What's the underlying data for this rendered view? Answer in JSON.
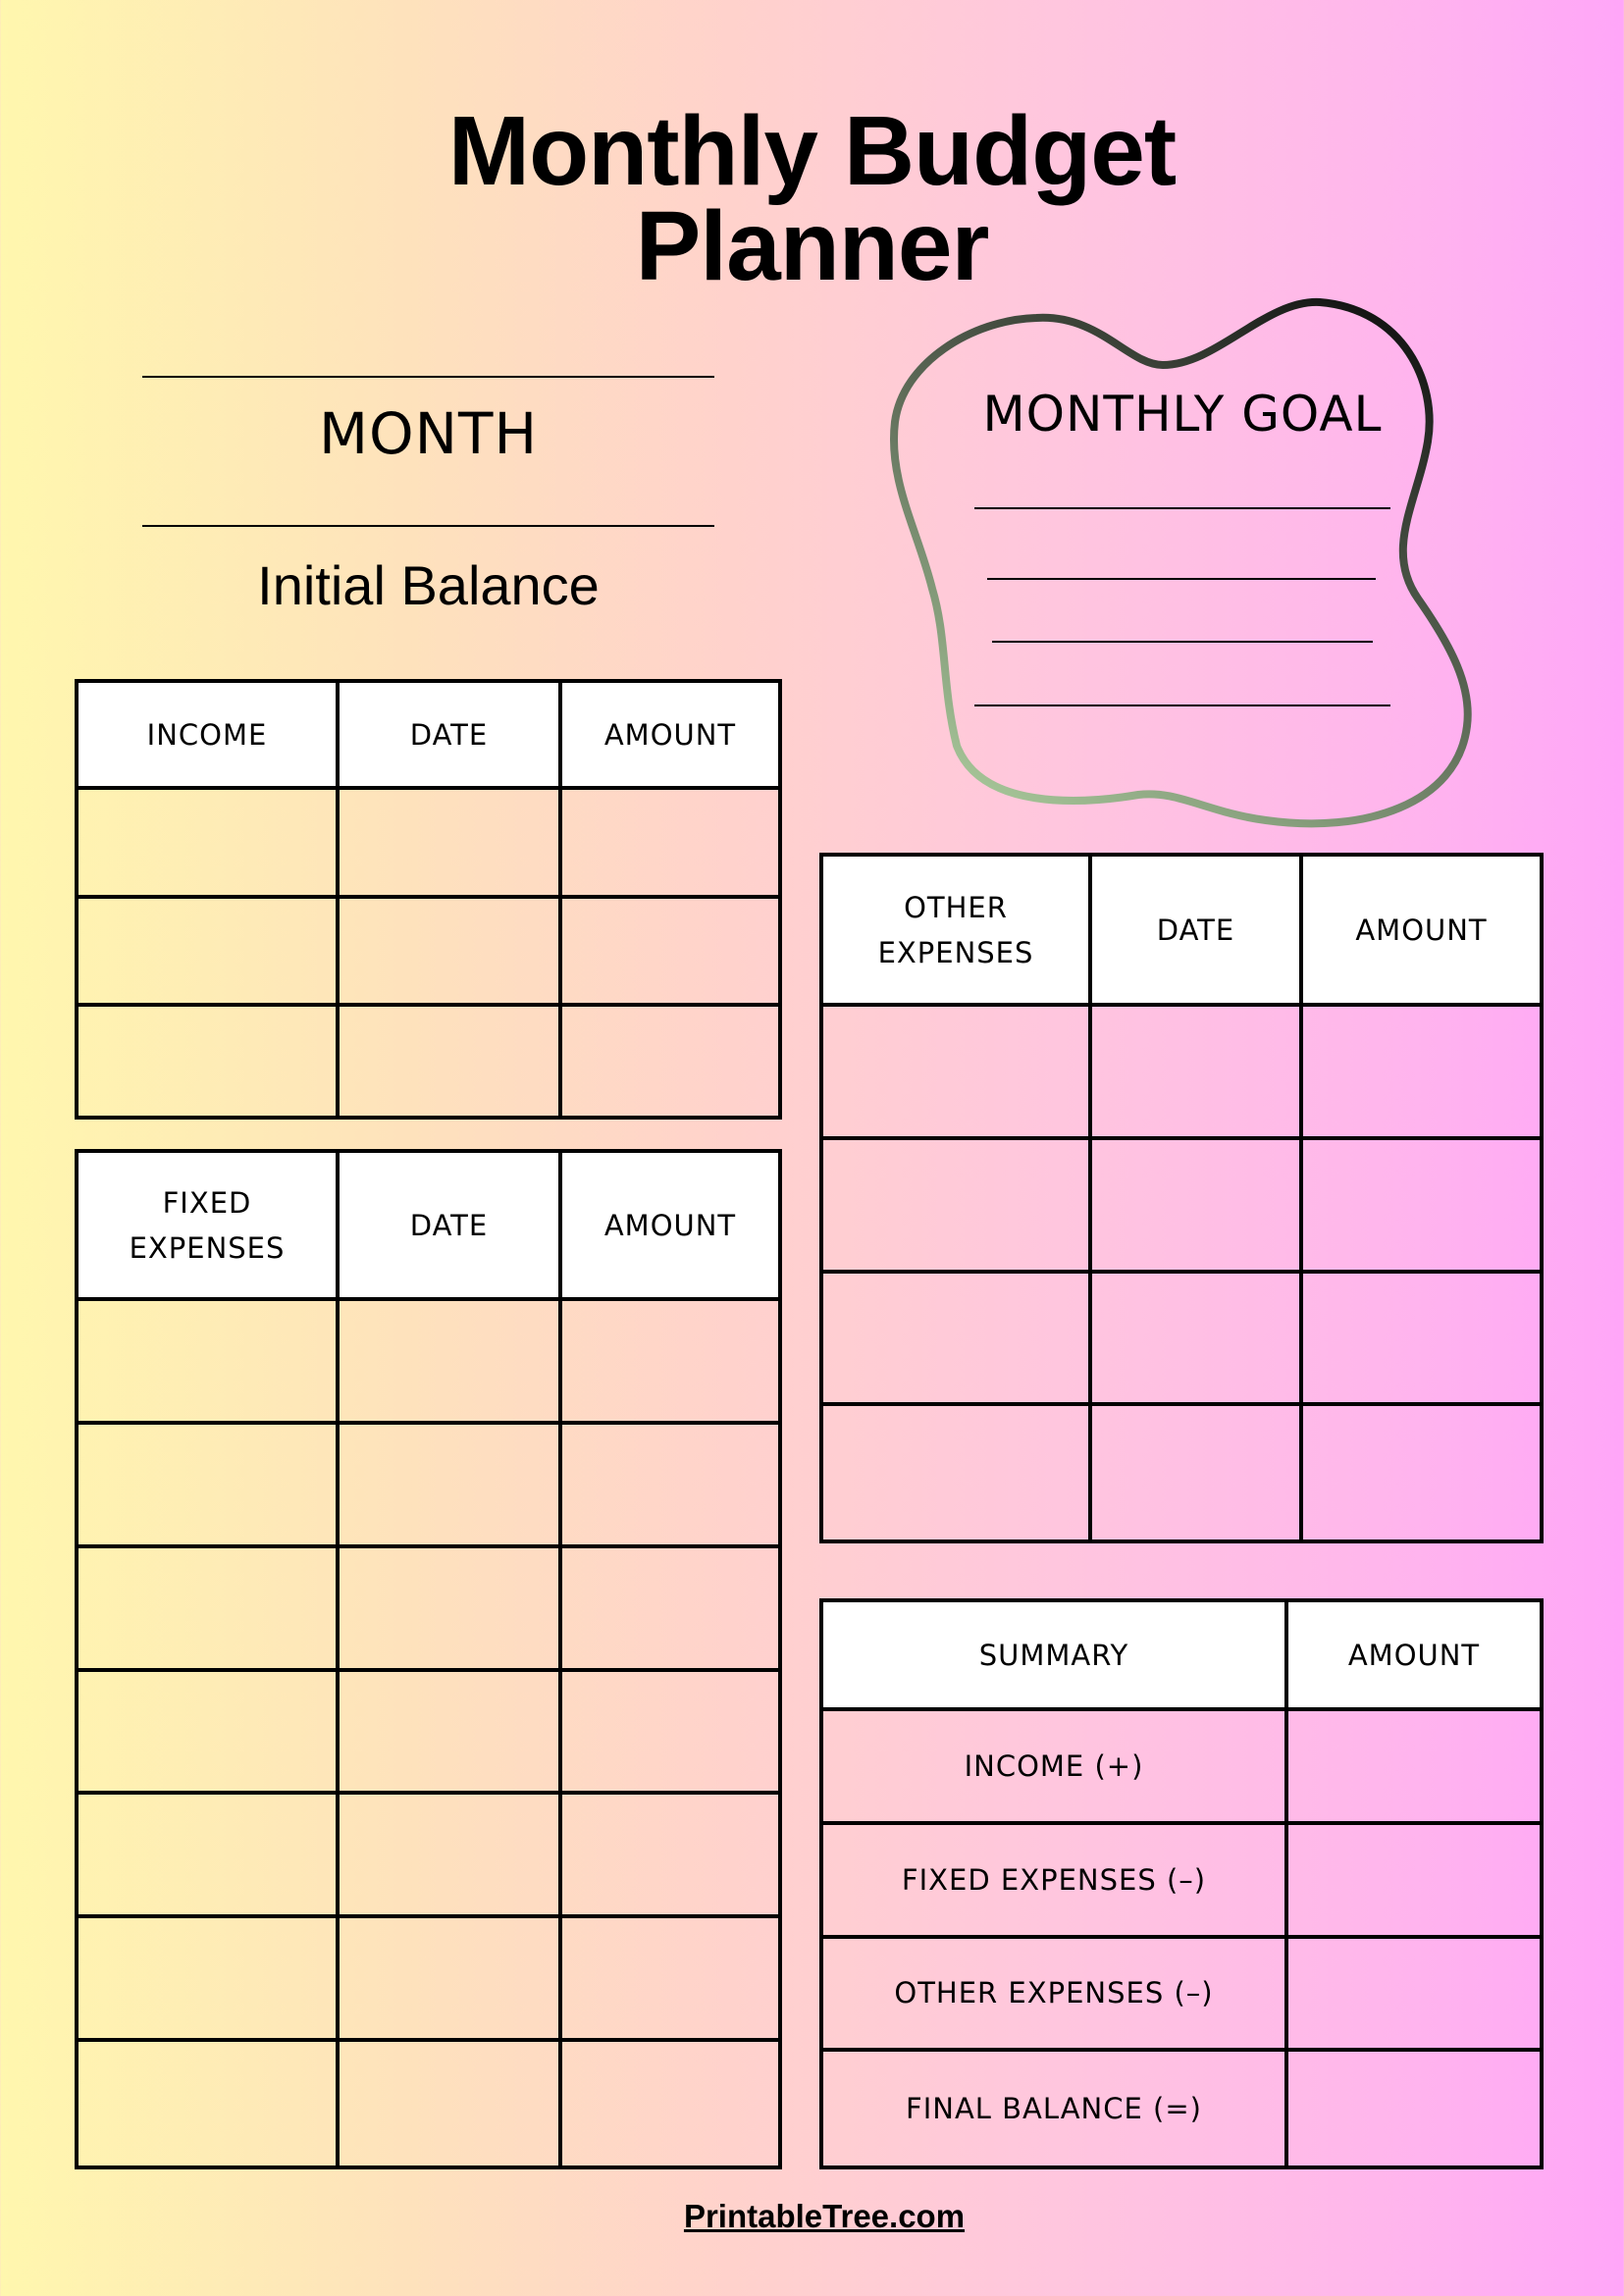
{
  "title": {
    "line1": "Monthly Budget",
    "line2": "Planner"
  },
  "month_label": "MONTH",
  "initial_balance_label": "Initial Balance",
  "goal": {
    "label": "MONTHLY GOAL",
    "lines": 4,
    "stroke_colors": [
      "#1a1a1a",
      "#a8c89a"
    ]
  },
  "income_table": {
    "headers": [
      "INCOME",
      "DATE",
      "AMOUNT"
    ],
    "rows": 3
  },
  "fixed_table": {
    "headers": [
      "FIXED EXPENSES",
      "DATE",
      "AMOUNT"
    ],
    "rows": 7
  },
  "other_table": {
    "headers": [
      "OTHER EXPENSES",
      "DATE",
      "AMOUNT"
    ],
    "rows": 4
  },
  "summary_table": {
    "headers": [
      "SUMMARY",
      "AMOUNT"
    ],
    "rows": [
      "INCOME (+)",
      "FIXED EXPENSES (–)",
      "OTHER EXPENSES (–)",
      "FINAL BALANCE (=)"
    ]
  },
  "footer": "PrintableTree.com"
}
